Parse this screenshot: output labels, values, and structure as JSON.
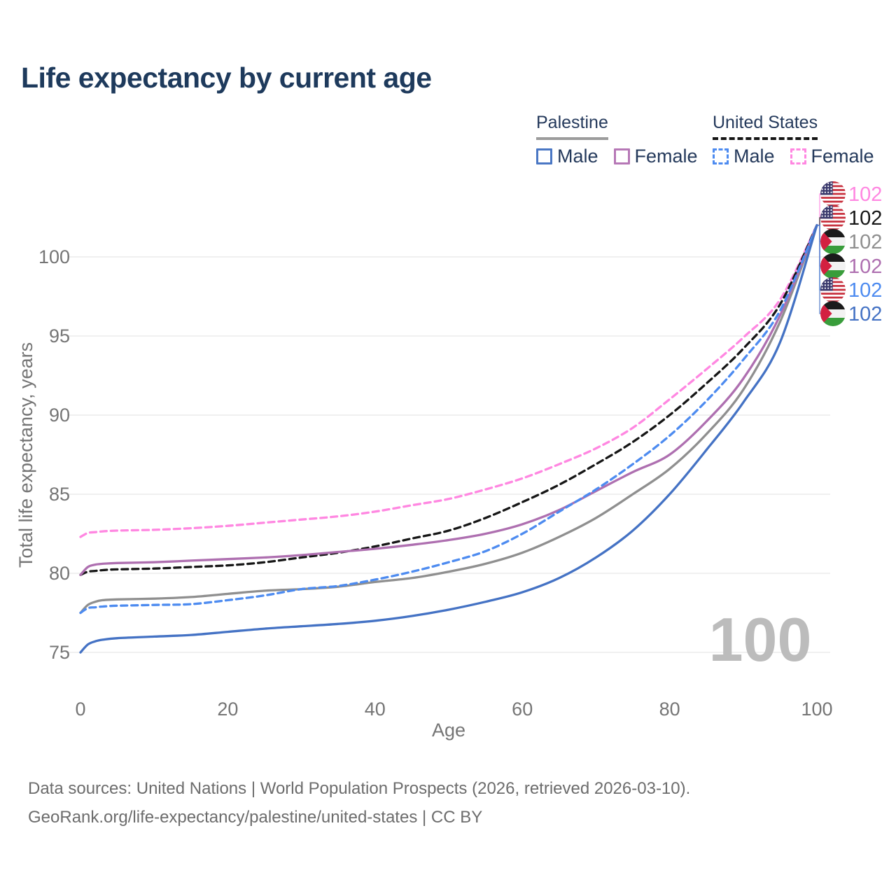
{
  "header": {
    "title": "Life expectancy by current age"
  },
  "legend": {
    "groups": [
      {
        "country": "Palestine",
        "line_style": "solid",
        "underline_color": "#9c9c9c",
        "items": [
          {
            "label": "Male",
            "color": "#4a77c4",
            "style": "solid"
          },
          {
            "label": "Female",
            "color": "#b678b6",
            "style": "solid"
          }
        ]
      },
      {
        "country": "United States",
        "line_style": "dashed",
        "underline_color": "#151515",
        "items": [
          {
            "label": "Male",
            "color": "#4d8bf0",
            "style": "dashed"
          },
          {
            "label": "Female",
            "color": "#ff87e1",
            "style": "dashed"
          }
        ]
      }
    ]
  },
  "chart_data": {
    "type": "line",
    "title": "Life expectancy by current age",
    "xlabel": "Age",
    "ylabel": "Total life expectancy, years",
    "xlim": [
      0,
      100
    ],
    "ylim": [
      75,
      100
    ],
    "x_ticks": [
      0,
      20,
      40,
      60,
      80,
      100
    ],
    "y_ticks": [
      75,
      80,
      85,
      90,
      95,
      100
    ],
    "grid": "horizontal",
    "legend_position": "top-right",
    "age_counter_watermark": "100",
    "ages": [
      0,
      1,
      2,
      3,
      5,
      10,
      15,
      20,
      25,
      30,
      35,
      40,
      45,
      50,
      55,
      60,
      65,
      70,
      75,
      80,
      85,
      90,
      95,
      100
    ],
    "series": [
      {
        "name": "United States Female",
        "country": "United States",
        "sex": "Female",
        "flag": "us",
        "color": "#ff87e1",
        "dashed": true,
        "end_label": "102",
        "values": [
          82.3,
          82.55,
          82.6,
          82.65,
          82.7,
          82.75,
          82.85,
          83.0,
          83.2,
          83.4,
          83.6,
          83.9,
          84.3,
          84.7,
          85.3,
          86.0,
          86.9,
          87.9,
          89.2,
          91.0,
          92.9,
          94.9,
          97.3,
          102
        ]
      },
      {
        "name": "United States Both sexes",
        "country": "United States",
        "sex": "Both",
        "flag": "us",
        "color": "#161616",
        "dashed": true,
        "end_label": "102",
        "values": [
          79.9,
          80.1,
          80.15,
          80.2,
          80.25,
          80.3,
          80.4,
          80.5,
          80.7,
          81.0,
          81.3,
          81.7,
          82.2,
          82.7,
          83.5,
          84.5,
          85.6,
          86.9,
          88.3,
          90.0,
          92.0,
          94.2,
          97.0,
          102
        ]
      },
      {
        "name": "Palestine Both sexes",
        "country": "Palestine",
        "sex": "Both",
        "flag": "ps",
        "color": "#8f8f8f",
        "dashed": false,
        "end_label": "102",
        "values": [
          77.5,
          78.0,
          78.2,
          78.3,
          78.35,
          78.4,
          78.5,
          78.7,
          78.9,
          79.0,
          79.15,
          79.45,
          79.7,
          80.1,
          80.6,
          81.3,
          82.3,
          83.5,
          85.0,
          86.6,
          88.8,
          91.6,
          95.9,
          102
        ]
      },
      {
        "name": "Palestine Female",
        "country": "Palestine",
        "sex": "Female",
        "flag": "ps",
        "color": "#ae6fb0",
        "dashed": false,
        "end_label": "102",
        "values": [
          79.9,
          80.4,
          80.55,
          80.6,
          80.65,
          80.7,
          80.8,
          80.9,
          81.0,
          81.15,
          81.35,
          81.55,
          81.8,
          82.1,
          82.5,
          83.1,
          84.0,
          85.2,
          86.4,
          87.5,
          89.6,
          92.3,
          96.3,
          102
        ]
      },
      {
        "name": "United States Male",
        "country": "United States",
        "sex": "Male",
        "flag": "us",
        "color": "#4d8bf0",
        "dashed": true,
        "end_label": "102",
        "values": [
          77.5,
          77.8,
          77.85,
          77.9,
          77.95,
          78.0,
          78.05,
          78.3,
          78.6,
          79.0,
          79.2,
          79.6,
          80.1,
          80.7,
          81.4,
          82.5,
          83.9,
          85.3,
          86.9,
          88.7,
          90.9,
          93.5,
          96.6,
          102
        ]
      },
      {
        "name": "Palestine Male",
        "country": "Palestine",
        "sex": "Male",
        "flag": "ps",
        "color": "#4472c4",
        "dashed": false,
        "end_label": "102",
        "values": [
          75.0,
          75.5,
          75.7,
          75.8,
          75.9,
          76.0,
          76.1,
          76.3,
          76.5,
          76.65,
          76.8,
          77.0,
          77.3,
          77.7,
          78.2,
          78.8,
          79.7,
          81.0,
          82.7,
          85.0,
          87.8,
          90.8,
          94.6,
          102
        ]
      }
    ]
  },
  "footer": {
    "line1": "Data sources: United Nations | World Population Prospects (2026, retrieved 2026-03-10).",
    "line2": "GeoRank.org/life-expectancy/palestine/united-states | CC BY"
  }
}
